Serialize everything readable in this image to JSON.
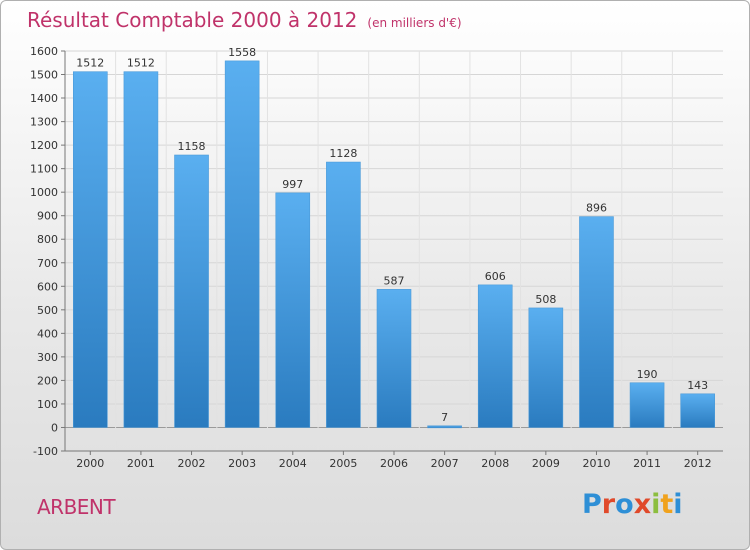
{
  "header": {
    "title": "Résultat Comptable 2000 à 2012",
    "subtitle": "(en milliers d'€)"
  },
  "footer": {
    "commune": "ARBENT",
    "logo": "Proxiti"
  },
  "colors": {
    "title": "#c0336a",
    "bar_light": "#5aaff0",
    "bar_dark": "#2a7bbf",
    "grid": "#d6d6d6"
  },
  "chart_data": {
    "type": "bar",
    "title": "Résultat Comptable 2000 à 2012",
    "subtitle": "(en milliers d'€)",
    "categories": [
      "2000",
      "2001",
      "2002",
      "2003",
      "2004",
      "2005",
      "2006",
      "2007",
      "2008",
      "2009",
      "2010",
      "2011",
      "2012"
    ],
    "values": [
      1512,
      1512,
      1158,
      1558,
      997,
      1128,
      587,
      7,
      606,
      508,
      896,
      190,
      143
    ],
    "value_labels": [
      "1512",
      "1512",
      "1158",
      "1558",
      "997",
      "1128",
      "587",
      "7",
      "606",
      "508",
      "896",
      "190",
      "143"
    ],
    "xlabel": "",
    "ylabel": "",
    "ylim": [
      -100,
      1600
    ],
    "yticks": [
      -100,
      0,
      100,
      200,
      300,
      400,
      500,
      600,
      700,
      800,
      900,
      1000,
      1100,
      1200,
      1300,
      1400,
      1500,
      1600
    ],
    "grid": true,
    "legend": "none"
  }
}
